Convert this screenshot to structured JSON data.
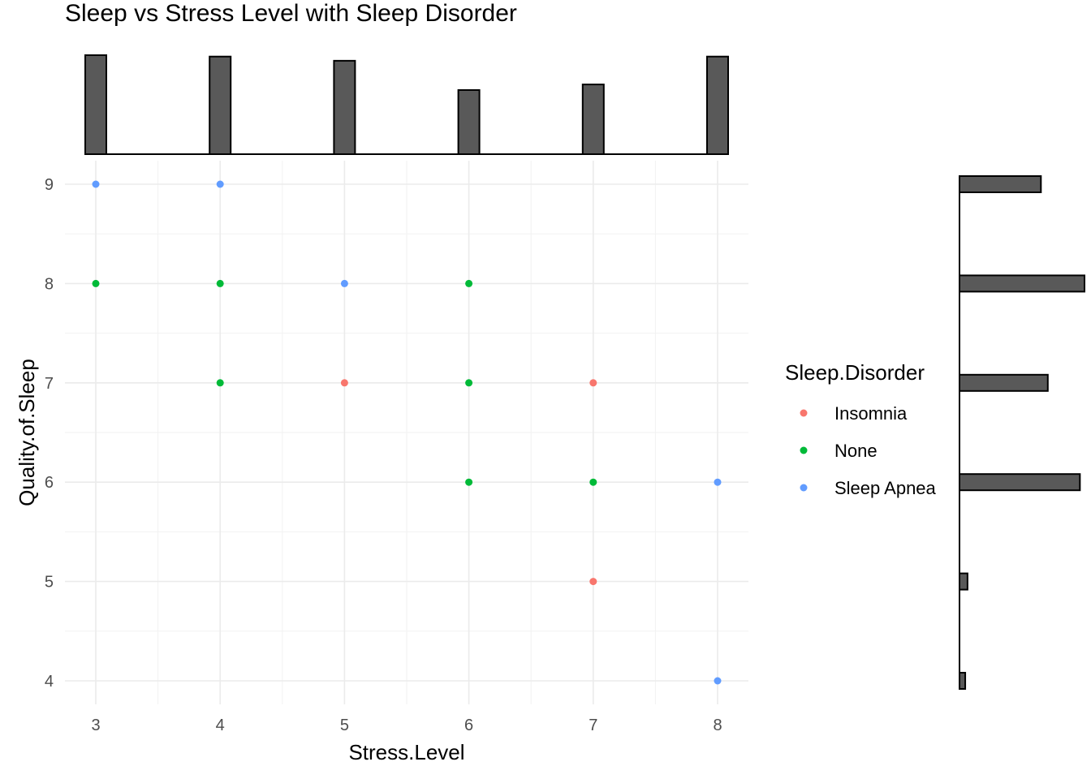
{
  "chart_data": {
    "type": "scatter",
    "title": "Sleep vs Stress Level with Sleep Disorder",
    "xlabel": "Stress.Level",
    "ylabel": "Quality.of.Sleep",
    "xlim": [
      2.75,
      8.25
    ],
    "ylim": [
      3.7,
      9.3
    ],
    "x_ticks": [
      3,
      4,
      5,
      6,
      7,
      8
    ],
    "y_ticks": [
      4,
      5,
      6,
      7,
      8,
      9
    ],
    "grid": true,
    "legend": {
      "title": "Sleep.Disorder",
      "placement": "right",
      "entries": [
        {
          "label": "Insomnia",
          "color": "#F8766D"
        },
        {
          "label": "None",
          "color": "#00BA38"
        },
        {
          "label": "Sleep Apnea",
          "color": "#619CFF"
        }
      ]
    },
    "points": [
      {
        "x": 3,
        "y": 9,
        "group": "Sleep Apnea"
      },
      {
        "x": 4,
        "y": 9,
        "group": "Sleep Apnea"
      },
      {
        "x": 3,
        "y": 8,
        "group": "None"
      },
      {
        "x": 4,
        "y": 8,
        "group": "None"
      },
      {
        "x": 5,
        "y": 8,
        "group": "Sleep Apnea"
      },
      {
        "x": 6,
        "y": 8,
        "group": "None"
      },
      {
        "x": 4,
        "y": 7,
        "group": "None"
      },
      {
        "x": 5,
        "y": 7,
        "group": "Insomnia"
      },
      {
        "x": 6,
        "y": 7,
        "group": "None"
      },
      {
        "x": 7,
        "y": 7,
        "group": "Insomnia"
      },
      {
        "x": 6,
        "y": 6,
        "group": "None"
      },
      {
        "x": 7,
        "y": 6,
        "group": "None"
      },
      {
        "x": 8,
        "y": 6,
        "group": "Sleep Apnea"
      },
      {
        "x": 7,
        "y": 5,
        "group": "Insomnia"
      },
      {
        "x": 8,
        "y": 4,
        "group": "Sleep Apnea"
      }
    ],
    "marginal_x_histogram": {
      "bins": [
        3,
        4,
        5,
        6,
        7,
        8
      ],
      "counts": [
        71,
        70,
        67,
        46,
        50,
        70
      ]
    },
    "marginal_y_histogram": {
      "bins": [
        9,
        8,
        7,
        6,
        5,
        4
      ],
      "counts": [
        71,
        109,
        77,
        105,
        7,
        5
      ]
    }
  }
}
